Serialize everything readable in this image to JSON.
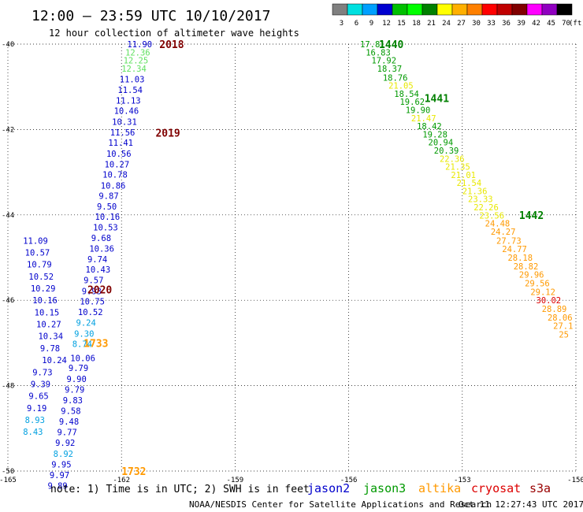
{
  "header": {
    "title": "12:00 – 23:59 UTC 10/10/2017",
    "subtitle": "12 hour collection of altimeter wave heights"
  },
  "legend_scale": {
    "values": [
      "3",
      "6",
      "9",
      "12",
      "15",
      "18",
      "21",
      "24",
      "27",
      "30",
      "33",
      "36",
      "39",
      "42",
      "45",
      "70"
    ],
    "unit": "(ft)",
    "colors": [
      "#808080",
      "#00e0e0",
      "#00a0ff",
      "#0000d0",
      "#00c000",
      "#00ff00",
      "#008000",
      "#ffff00",
      "#ffb000",
      "#ff8000",
      "#ff0000",
      "#c00000",
      "#800000",
      "#ff00ff",
      "#9000c0",
      "#000000"
    ]
  },
  "footer": {
    "note": "note:  1) Time is in UTC; 2) SWH is in feet",
    "credit": "NOAA/NESDIS Center for Satellite Applications and Research",
    "timestamp": "Oct 11 12:27:43 UTC 2017",
    "satellites": [
      {
        "name": "jason2",
        "color": "#0000cc"
      },
      {
        "name": "jason3",
        "color": "#009900"
      },
      {
        "name": "altika",
        "color": "#ff9900"
      },
      {
        "name": "cryosat",
        "color": "#dd0000"
      },
      {
        "name": "s3a",
        "color": "#990000"
      }
    ]
  },
  "chart_data": {
    "type": "scatter",
    "title": "12:00 – 23:59 UTC 10/10/2017",
    "subtitle": "12 hour collection of altimeter wave heights",
    "xlim": [
      -165,
      -150
    ],
    "ylim": [
      -50,
      -40
    ],
    "x_ticks": [
      "-165",
      "-162",
      "-159",
      "-156",
      "-153",
      "-150"
    ],
    "y_ticks": [
      "-40",
      "-42",
      "-44",
      "-46",
      "-48",
      "-50"
    ],
    "grid": true,
    "time_labels": [
      {
        "text": "2018",
        "lon": -161.0,
        "lat": -40.0,
        "color": "#800000"
      },
      {
        "text": "2019",
        "lon": -161.1,
        "lat": -42.08,
        "color": "#800000"
      },
      {
        "text": "2020",
        "lon": -162.9,
        "lat": -45.75,
        "color": "#800000"
      },
      {
        "text": "1733",
        "lon": -163.0,
        "lat": -47.0,
        "color": "#ff9900"
      },
      {
        "text": "1732",
        "lon": -162.0,
        "lat": -50.0,
        "color": "#ff9900"
      },
      {
        "text": "1440",
        "lon": -155.2,
        "lat": -40.0,
        "color": "#008000"
      },
      {
        "text": "1441",
        "lon": -154.0,
        "lat": -41.26,
        "color": "#008000"
      },
      {
        "text": "1442",
        "lon": -151.5,
        "lat": -44.0,
        "color": "#008000"
      }
    ],
    "series": [
      {
        "name": "jason2",
        "color": "#0000cc",
        "points": [
          {
            "lon": -161.85,
            "lat": -40.0,
            "v": "11.90",
            "c": "#0000cc"
          },
          {
            "lon": -161.9,
            "lat": -40.19,
            "v": "12.36",
            "c": "#60e060"
          },
          {
            "lon": -161.95,
            "lat": -40.38,
            "v": "12.25",
            "c": "#60e060"
          },
          {
            "lon": -162.0,
            "lat": -40.57,
            "v": "12.34",
            "c": "#60e060"
          },
          {
            "lon": -162.05,
            "lat": -40.82,
            "v": "11.03",
            "c": "#0000cc"
          },
          {
            "lon": -162.1,
            "lat": -41.07,
            "v": "11.54",
            "c": "#0000cc"
          },
          {
            "lon": -162.15,
            "lat": -41.32,
            "v": "11.13",
            "c": "#0000cc"
          },
          {
            "lon": -162.2,
            "lat": -41.56,
            "v": "10.46",
            "c": "#0000cc"
          },
          {
            "lon": -162.25,
            "lat": -41.82,
            "v": "10.31",
            "c": "#0000cc"
          },
          {
            "lon": -162.3,
            "lat": -42.07,
            "v": "11.56",
            "c": "#0000cc"
          },
          {
            "lon": -162.35,
            "lat": -42.31,
            "v": "11.41",
            "c": "#0000cc"
          },
          {
            "lon": -162.4,
            "lat": -42.56,
            "v": "10.56",
            "c": "#0000cc"
          },
          {
            "lon": -162.45,
            "lat": -42.81,
            "v": "10.27",
            "c": "#0000cc"
          },
          {
            "lon": -162.5,
            "lat": -43.05,
            "v": "10.78",
            "c": "#0000cc"
          },
          {
            "lon": -162.55,
            "lat": -43.31,
            "v": "10.86",
            "c": "#0000cc"
          },
          {
            "lon": -162.6,
            "lat": -43.55,
            "v": "9.87",
            "c": "#0000cc"
          },
          {
            "lon": -162.65,
            "lat": -43.8,
            "v": "9.50",
            "c": "#0000cc"
          },
          {
            "lon": -162.7,
            "lat": -44.04,
            "v": "10.16",
            "c": "#0000cc"
          },
          {
            "lon": -162.75,
            "lat": -44.29,
            "v": "10.53",
            "c": "#0000cc"
          },
          {
            "lon": -162.8,
            "lat": -44.54,
            "v": "9.68",
            "c": "#0000cc"
          },
          {
            "lon": -162.85,
            "lat": -44.79,
            "v": "10.36",
            "c": "#0000cc"
          },
          {
            "lon": -162.9,
            "lat": -45.04,
            "v": "9.74",
            "c": "#0000cc"
          },
          {
            "lon": -162.95,
            "lat": -45.28,
            "v": "10.43",
            "c": "#0000cc"
          },
          {
            "lon": -163.0,
            "lat": -45.53,
            "v": "9.57",
            "c": "#0000cc"
          },
          {
            "lon": -163.05,
            "lat": -45.78,
            "v": "9.93",
            "c": "#0000cc"
          },
          {
            "lon": -163.1,
            "lat": -46.02,
            "v": "10.75",
            "c": "#0000cc"
          },
          {
            "lon": -163.15,
            "lat": -46.27,
            "v": "10.52",
            "c": "#0000cc"
          },
          {
            "lon": -163.2,
            "lat": -46.52,
            "v": "9.24",
            "c": "#00a0e0"
          },
          {
            "lon": -163.25,
            "lat": -46.78,
            "v": "9.30",
            "c": "#00a0e0"
          },
          {
            "lon": -163.3,
            "lat": -47.02,
            "v": "8.74",
            "c": "#00a0e0"
          },
          {
            "lon": -163.35,
            "lat": -47.35,
            "v": "10.06",
            "c": "#0000cc"
          },
          {
            "lon": -163.4,
            "lat": -47.58,
            "v": "9.79",
            "c": "#0000cc"
          },
          {
            "lon": -163.45,
            "lat": -47.84,
            "v": "9.90",
            "c": "#0000cc"
          },
          {
            "lon": -163.5,
            "lat": -48.09,
            "v": "9.79",
            "c": "#0000cc"
          },
          {
            "lon": -163.55,
            "lat": -48.34,
            "v": "9.83",
            "c": "#0000cc"
          },
          {
            "lon": -163.6,
            "lat": -48.59,
            "v": "9.58",
            "c": "#0000cc"
          },
          {
            "lon": -163.65,
            "lat": -48.84,
            "v": "9.48",
            "c": "#0000cc"
          },
          {
            "lon": -163.7,
            "lat": -49.09,
            "v": "9.77",
            "c": "#0000cc"
          },
          {
            "lon": -163.75,
            "lat": -49.34,
            "v": "9.92",
            "c": "#0000cc"
          },
          {
            "lon": -163.8,
            "lat": -49.59,
            "v": "8.92",
            "c": "#00a0e0"
          },
          {
            "lon": -163.85,
            "lat": -49.84,
            "v": "9.95",
            "c": "#0000cc"
          },
          {
            "lon": -163.9,
            "lat": -50.09,
            "v": "9.97",
            "c": "#0000cc"
          },
          {
            "lon": -163.95,
            "lat": -50.34,
            "v": "9.89",
            "c": "#0000cc"
          }
        ]
      },
      {
        "name": "altika",
        "color": "#ff9900",
        "points": [
          {
            "lon": -164.6,
            "lat": -44.6,
            "v": "11.09",
            "c": "#0000cc"
          },
          {
            "lon": -164.55,
            "lat": -44.88,
            "v": "10.57",
            "c": "#0000cc"
          },
          {
            "lon": -164.5,
            "lat": -45.16,
            "v": "10.79",
            "c": "#0000cc"
          },
          {
            "lon": -164.45,
            "lat": -45.44,
            "v": "10.52",
            "c": "#0000cc"
          },
          {
            "lon": -164.4,
            "lat": -45.72,
            "v": "10.29",
            "c": "#0000cc"
          },
          {
            "lon": -164.35,
            "lat": -46.0,
            "v": "10.16",
            "c": "#0000cc"
          },
          {
            "lon": -164.3,
            "lat": -46.28,
            "v": "10.15",
            "c": "#0000cc"
          },
          {
            "lon": -164.25,
            "lat": -46.56,
            "v": "10.27",
            "c": "#0000cc"
          },
          {
            "lon": -164.2,
            "lat": -46.84,
            "v": "10.34",
            "c": "#0000cc"
          },
          {
            "lon": -164.15,
            "lat": -47.12,
            "v": "9.78",
            "c": "#0000cc"
          },
          {
            "lon": -164.1,
            "lat": -47.4,
            "v": "10.24",
            "c": "#0000cc"
          },
          {
            "lon": -164.35,
            "lat": -47.68,
            "v": "9.73",
            "c": "#0000cc"
          },
          {
            "lon": -164.4,
            "lat": -47.96,
            "v": "9.39",
            "c": "#0000cc"
          },
          {
            "lon": -164.45,
            "lat": -48.24,
            "v": "9.65",
            "c": "#0000cc"
          },
          {
            "lon": -164.5,
            "lat": -48.52,
            "v": "9.19",
            "c": "#0000cc"
          },
          {
            "lon": -164.55,
            "lat": -48.8,
            "v": "8.93",
            "c": "#00a0e0"
          },
          {
            "lon": -164.6,
            "lat": -49.08,
            "v": "8.43",
            "c": "#00a0e0"
          }
        ]
      },
      {
        "name": "jason3",
        "color": "#009900",
        "points": [
          {
            "lon": -155.7,
            "lat": -40.0,
            "v": "17.81",
            "c": "#009900"
          },
          {
            "lon": -155.55,
            "lat": -40.19,
            "v": "16.83",
            "c": "#009900"
          },
          {
            "lon": -155.4,
            "lat": -40.38,
            "v": "17.92",
            "c": "#009900"
          },
          {
            "lon": -155.25,
            "lat": -40.57,
            "v": "18.37",
            "c": "#009900"
          },
          {
            "lon": -155.1,
            "lat": -40.78,
            "v": "18.76",
            "c": "#009900"
          },
          {
            "lon": -154.95,
            "lat": -40.97,
            "v": "21.05",
            "c": "#e8e800"
          },
          {
            "lon": -154.8,
            "lat": -41.16,
            "v": "18.54",
            "c": "#009900"
          },
          {
            "lon": -154.65,
            "lat": -41.35,
            "v": "19.62",
            "c": "#009900"
          },
          {
            "lon": -154.5,
            "lat": -41.54,
            "v": "19.90",
            "c": "#009900"
          },
          {
            "lon": -154.35,
            "lat": -41.73,
            "v": "21.47",
            "c": "#e8e800"
          },
          {
            "lon": -154.2,
            "lat": -41.92,
            "v": "18.42",
            "c": "#009900"
          },
          {
            "lon": -154.05,
            "lat": -42.11,
            "v": "19.28",
            "c": "#009900"
          },
          {
            "lon": -153.9,
            "lat": -42.3,
            "v": "20.94",
            "c": "#009900"
          },
          {
            "lon": -153.75,
            "lat": -42.49,
            "v": "20.39",
            "c": "#009900"
          },
          {
            "lon": -153.6,
            "lat": -42.68,
            "v": "22.36",
            "c": "#e8e800"
          },
          {
            "lon": -153.45,
            "lat": -42.87,
            "v": "21.35",
            "c": "#e8e800"
          },
          {
            "lon": -153.3,
            "lat": -43.06,
            "v": "21.01",
            "c": "#e8e800"
          },
          {
            "lon": -153.15,
            "lat": -43.25,
            "v": "21.54",
            "c": "#e8e800"
          },
          {
            "lon": -153.0,
            "lat": -43.44,
            "v": "21.36",
            "c": "#e8e800"
          },
          {
            "lon": -152.85,
            "lat": -43.63,
            "v": "23.33",
            "c": "#e8e800"
          },
          {
            "lon": -152.7,
            "lat": -43.82,
            "v": "22.26",
            "c": "#e8e800"
          },
          {
            "lon": -152.55,
            "lat": -44.01,
            "v": "23.56",
            "c": "#e8e800"
          },
          {
            "lon": -152.4,
            "lat": -44.2,
            "v": "24.48",
            "c": "#ff9900"
          },
          {
            "lon": -152.25,
            "lat": -44.39,
            "v": "24.27",
            "c": "#ff9900"
          },
          {
            "lon": -152.1,
            "lat": -44.6,
            "v": "27.73",
            "c": "#ff9900"
          },
          {
            "lon": -151.95,
            "lat": -44.8,
            "v": "24.77",
            "c": "#ff9900"
          },
          {
            "lon": -151.8,
            "lat": -45.0,
            "v": "28.18",
            "c": "#ff9900"
          },
          {
            "lon": -151.65,
            "lat": -45.2,
            "v": "28.82",
            "c": "#ff9900"
          },
          {
            "lon": -151.5,
            "lat": -45.4,
            "v": "29.96",
            "c": "#ff9900"
          },
          {
            "lon": -151.35,
            "lat": -45.6,
            "v": "29.56",
            "c": "#ff9900"
          },
          {
            "lon": -151.2,
            "lat": -45.8,
            "v": "29.12",
            "c": "#ff9900"
          },
          {
            "lon": -151.05,
            "lat": -46.0,
            "v": "30.02",
            "c": "#dd0000"
          },
          {
            "lon": -150.9,
            "lat": -46.2,
            "v": "28.89",
            "c": "#ff9900"
          },
          {
            "lon": -150.75,
            "lat": -46.4,
            "v": "28.06",
            "c": "#ff9900"
          },
          {
            "lon": -150.6,
            "lat": -46.6,
            "v": "27.1",
            "c": "#ff9900"
          },
          {
            "lon": -150.45,
            "lat": -46.8,
            "v": "25",
            "c": "#ff9900"
          }
        ]
      }
    ]
  }
}
